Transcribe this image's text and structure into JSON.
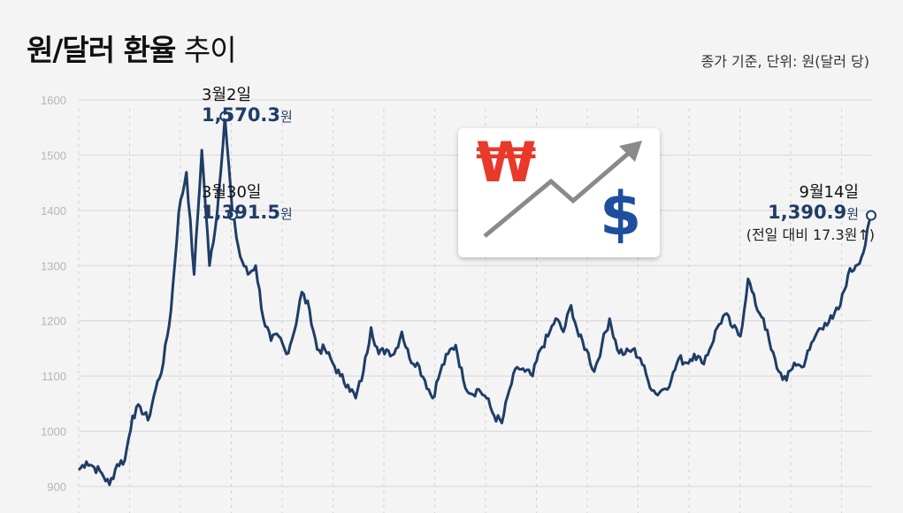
{
  "header": {
    "title_bold": "원/달러 환율",
    "title_light": "추이",
    "unit_note": "종가 기준, 단위: 원(달러 당)"
  },
  "annotations": [
    {
      "date": "3월2일",
      "value": "1,570.3",
      "unit": "원"
    },
    {
      "date": "3월30일",
      "value": "1,391.5",
      "unit": "원"
    },
    {
      "date": "9월14일",
      "value": "1,390.9",
      "unit": "원",
      "change": "(전일 대비 17.3원↑)"
    }
  ],
  "icon": {
    "won_symbol": "₩",
    "dollar_symbol": "$",
    "won_color": "#e8392b",
    "dollar_color": "#1f4f9c",
    "arrow": "trend-up-arrow"
  },
  "colors": {
    "line": "#1f3d66",
    "background": "#f4f4f4",
    "grid": "#d6d6d6"
  },
  "chart_data": {
    "type": "line",
    "title": "원/달러 환율 추이",
    "ylabel": "",
    "xlabel": "",
    "ylim": [
      900,
      1600
    ],
    "yticks": [
      900,
      1000,
      1100,
      1200,
      1300,
      1400,
      1500,
      1600
    ],
    "grid": true,
    "x_gridlines": 16,
    "series": [
      {
        "values": [
          930,
          945,
          935,
          924,
          903,
          940,
          948,
          1028,
          1044,
          1020,
          1076,
          1124,
          1220,
          1396,
          1469,
          1284,
          1509,
          1300,
          1396,
          1570.3,
          1391.5,
          1316,
          1284,
          1300,
          1204,
          1164,
          1172,
          1140,
          1180,
          1252,
          1220,
          1148,
          1148,
          1124,
          1100,
          1084,
          1060,
          1108,
          1188,
          1140,
          1148,
          1140,
          1180,
          1132,
          1124,
          1092,
          1060,
          1108,
          1140,
          1156,
          1092,
          1068,
          1076,
          1060,
          1028,
          1015,
          1076,
          1116,
          1108,
          1100,
          1148,
          1172,
          1204,
          1180,
          1228,
          1172,
          1148,
          1108,
          1156,
          1204,
          1148,
          1140,
          1148,
          1132,
          1092,
          1068,
          1076,
          1092,
          1132,
          1124,
          1140,
          1124,
          1148,
          1188,
          1212,
          1188,
          1172,
          1276,
          1228,
          1204,
          1148,
          1108,
          1092,
          1124,
          1116,
          1148,
          1180,
          1196,
          1204,
          1228,
          1284,
          1300,
          1324,
          1390.9
        ]
      }
    ],
    "highlights": [
      {
        "index": 19,
        "value": 1570.3
      },
      {
        "index": 20,
        "value": 1391.5
      },
      {
        "index": 103,
        "value": 1390.9
      }
    ]
  }
}
